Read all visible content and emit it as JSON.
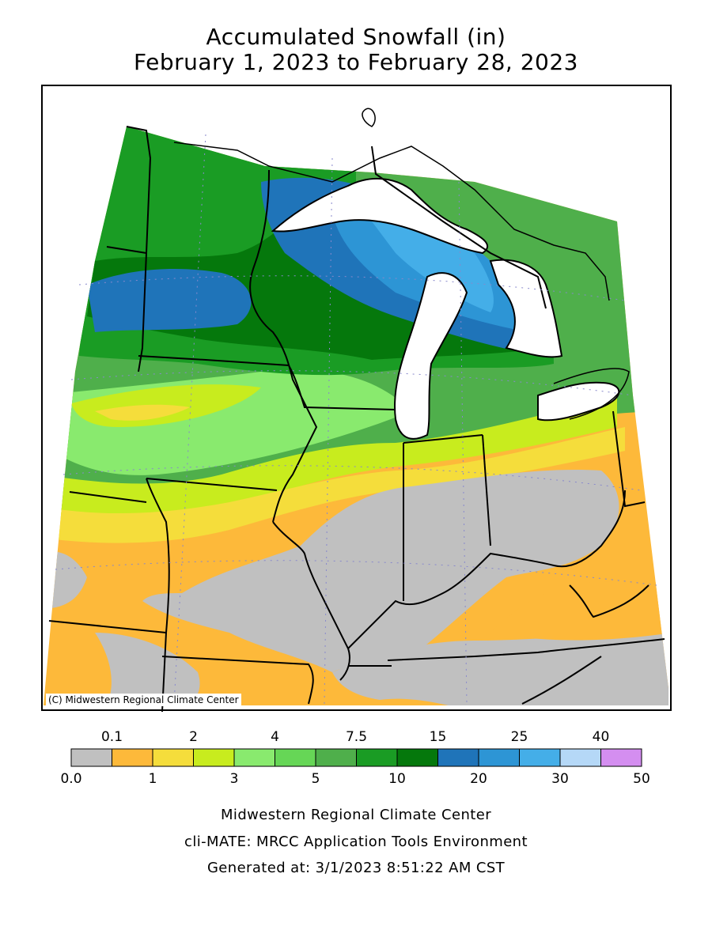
{
  "title": "Accumulated Snowfall (in)",
  "subtitle": "February 1, 2023 to February 28, 2023",
  "credit": "(C) Midwestern Regional Climate Center",
  "legend": {
    "top_labels": [
      "0.1",
      "2",
      "4",
      "7.5",
      "15",
      "25",
      "40"
    ],
    "bottom_labels": [
      "0.0",
      "1",
      "3",
      "5",
      "10",
      "20",
      "30",
      "50"
    ],
    "bins": [
      {
        "range": "0.0-0.1",
        "color": "#c0c0c0"
      },
      {
        "range": "0.1-1",
        "color": "#fdb93a"
      },
      {
        "range": "1-2",
        "color": "#f5dd3b"
      },
      {
        "range": "2-3",
        "color": "#c8ec1e"
      },
      {
        "range": "3-4",
        "color": "#89ea6e"
      },
      {
        "range": "4-5",
        "color": "#66d656"
      },
      {
        "range": "5-7.5",
        "color": "#4faf4b"
      },
      {
        "range": "7.5-10",
        "color": "#1a9c24"
      },
      {
        "range": "10-15",
        "color": "#05780c"
      },
      {
        "range": "15-20",
        "color": "#1f74b9"
      },
      {
        "range": "20-25",
        "color": "#2d95d5"
      },
      {
        "range": "25-30",
        "color": "#44aee8"
      },
      {
        "range": "30-40",
        "color": "#b5d8f7"
      },
      {
        "range": "40-50",
        "color": "#d48ef0"
      }
    ]
  },
  "footer": {
    "line1": "Midwestern Regional Climate Center",
    "line2": "cli-MATE: MRCC Application Tools Environment",
    "line3": "Generated at: 3/1/2023 8:51:22 AM CST"
  }
}
